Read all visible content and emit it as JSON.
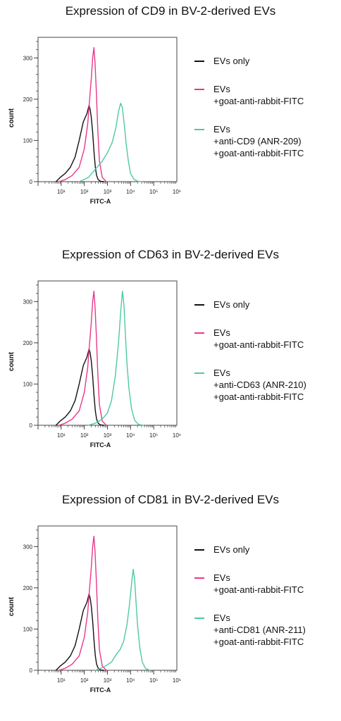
{
  "chart_data": [
    {
      "type": "histogram",
      "title": "Expression of CD9 in BV-2-derived EVs",
      "xlabel": "FITC-A",
      "ylabel": "count",
      "xscale": "log",
      "xlim": [
        1,
        1000000
      ],
      "ylim": [
        0,
        350
      ],
      "yticks": [
        0,
        100,
        200,
        300
      ],
      "xtick_labels": [
        "10¹",
        "10²",
        "10³",
        "10⁴",
        "10⁵",
        "10⁶"
      ],
      "legend_position": "right",
      "series": [
        {
          "name": "EVs only",
          "label_lines": [
            "EVs only"
          ],
          "color": "#111111",
          "x": [
            6,
            9,
            15,
            25,
            40,
            60,
            90,
            130,
            160,
            180,
            200,
            230,
            260,
            300,
            340,
            400,
            500,
            700
          ],
          "y": [
            0,
            10,
            20,
            35,
            60,
            100,
            145,
            165,
            185,
            175,
            155,
            120,
            75,
            35,
            15,
            5,
            1,
            0
          ]
        },
        {
          "name": "EVs +goat-anti-rabbit-FITC",
          "label_lines": [
            "EVs",
            "+goat-anti-rabbit-FITC"
          ],
          "color": "#e8388a",
          "x": [
            8,
            15,
            30,
            60,
            100,
            140,
            170,
            200,
            230,
            260,
            290,
            330,
            380,
            450,
            600,
            900
          ],
          "y": [
            0,
            5,
            15,
            35,
            80,
            140,
            200,
            250,
            300,
            325,
            290,
            220,
            130,
            50,
            10,
            0
          ]
        },
        {
          "name": "EVs +anti-CD9 (ANR-209) +goat-anti-rabbit-FITC",
          "label_lines": [
            "EVs",
            "+anti-CD9 (ANR-209)",
            "+goat-anti-rabbit-FITC"
          ],
          "color": "#4ec9a2",
          "x": [
            60,
            150,
            300,
            600,
            1000,
            1600,
            2300,
            3000,
            3700,
            4400,
            5200,
            6500,
            8000,
            10000,
            14000,
            20000,
            30000
          ],
          "y": [
            0,
            10,
            30,
            50,
            70,
            95,
            130,
            170,
            190,
            180,
            145,
            90,
            50,
            20,
            6,
            1,
            0
          ]
        }
      ]
    },
    {
      "type": "histogram",
      "title": "Expression of CD63 in BV-2-derived EVs",
      "xlabel": "FITC-A",
      "ylabel": "count",
      "xscale": "log",
      "xlim": [
        1,
        1000000
      ],
      "ylim": [
        0,
        350
      ],
      "yticks": [
        0,
        100,
        200,
        300
      ],
      "xtick_labels": [
        "10¹",
        "10²",
        "10³",
        "10⁴",
        "10⁵",
        "10⁶"
      ],
      "legend_position": "right",
      "series": [
        {
          "name": "EVs only",
          "label_lines": [
            "EVs only"
          ],
          "color": "#111111",
          "x": [
            6,
            9,
            15,
            25,
            40,
            60,
            90,
            130,
            160,
            180,
            200,
            230,
            260,
            300,
            340,
            400,
            500,
            700
          ],
          "y": [
            0,
            10,
            20,
            35,
            60,
            100,
            145,
            165,
            185,
            175,
            155,
            120,
            75,
            35,
            15,
            5,
            1,
            0
          ]
        },
        {
          "name": "EVs +goat-anti-rabbit-FITC",
          "label_lines": [
            "EVs",
            "+goat-anti-rabbit-FITC"
          ],
          "color": "#e8388a",
          "x": [
            8,
            15,
            30,
            60,
            100,
            140,
            170,
            200,
            230,
            260,
            290,
            330,
            380,
            450,
            600,
            900
          ],
          "y": [
            0,
            5,
            15,
            35,
            80,
            140,
            200,
            250,
            300,
            325,
            290,
            220,
            130,
            50,
            10,
            0
          ]
        },
        {
          "name": "EVs +anti-CD63 (ANR-210) +goat-anti-rabbit-FITC",
          "label_lines": [
            "EVs",
            "+anti-CD63 (ANR-210)",
            "+goat-anti-rabbit-FITC"
          ],
          "color": "#4ec9a2",
          "x": [
            150,
            300,
            600,
            1000,
            1500,
            2200,
            3000,
            3800,
            4500,
            5200,
            6000,
            7000,
            8500,
            11000,
            15000,
            22000,
            35000
          ],
          "y": [
            0,
            5,
            15,
            30,
            60,
            120,
            200,
            280,
            325,
            290,
            220,
            150,
            90,
            40,
            12,
            2,
            0
          ]
        }
      ]
    },
    {
      "type": "histogram",
      "title": "Expression of CD81 in BV-2-derived EVs",
      "xlabel": "FITC-A",
      "ylabel": "count",
      "xscale": "log",
      "xlim": [
        1,
        1000000
      ],
      "ylim": [
        0,
        350
      ],
      "yticks": [
        0,
        100,
        200,
        300
      ],
      "xtick_labels": [
        "10¹",
        "10²",
        "10³",
        "10⁴",
        "10⁵",
        "10⁶"
      ],
      "legend_position": "right",
      "series": [
        {
          "name": "EVs only",
          "label_lines": [
            "EVs only"
          ],
          "color": "#111111",
          "x": [
            6,
            9,
            15,
            25,
            40,
            60,
            90,
            130,
            160,
            180,
            200,
            230,
            260,
            300,
            340,
            400,
            500,
            700
          ],
          "y": [
            0,
            10,
            20,
            35,
            60,
            100,
            145,
            165,
            185,
            175,
            155,
            120,
            75,
            35,
            15,
            5,
            1,
            0
          ]
        },
        {
          "name": "EVs +goat-anti-rabbit-FITC",
          "label_lines": [
            "EVs",
            "+goat-anti-rabbit-FITC"
          ],
          "color": "#e8388a",
          "x": [
            8,
            15,
            30,
            60,
            100,
            140,
            170,
            200,
            230,
            260,
            290,
            330,
            380,
            450,
            600,
            900
          ],
          "y": [
            0,
            5,
            15,
            35,
            80,
            140,
            200,
            250,
            300,
            325,
            290,
            220,
            130,
            50,
            10,
            0
          ]
        },
        {
          "name": "EVs +anti-CD81 (ANR-211) +goat-anti-rabbit-FITC",
          "label_lines": [
            "EVs",
            "+anti-CD81 (ANR-211)",
            "+goat-anti-rabbit-FITC"
          ],
          "color": "#4ec9a2",
          "x": [
            300,
            700,
            1500,
            2500,
            3500,
            5000,
            7000,
            9000,
            11000,
            13000,
            15000,
            17000,
            20000,
            25000,
            32000,
            45000,
            70000
          ],
          "y": [
            0,
            8,
            20,
            40,
            50,
            70,
            110,
            160,
            210,
            245,
            220,
            170,
            110,
            55,
            20,
            4,
            0
          ]
        }
      ]
    }
  ]
}
